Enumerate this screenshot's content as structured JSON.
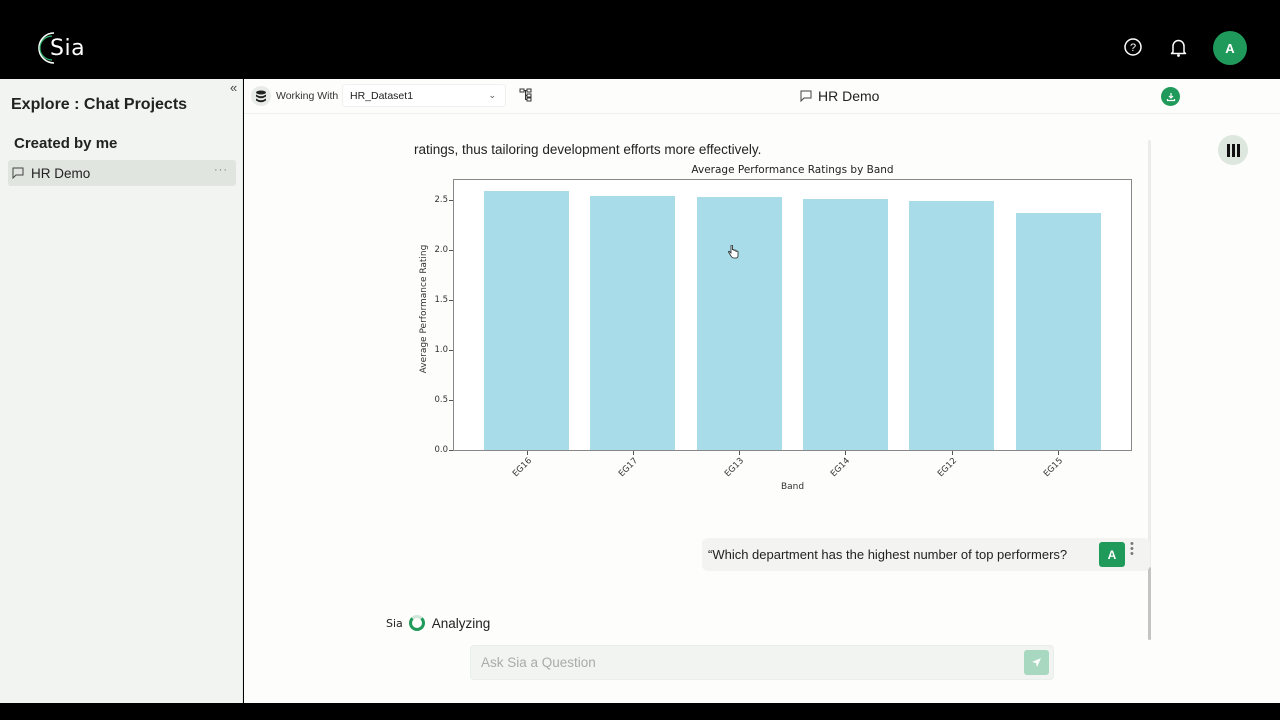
{
  "app": {
    "logo_text": "Sia",
    "avatar_initial": "A"
  },
  "sidebar": {
    "title": "Explore : Chat Projects",
    "section_label": "Created by me",
    "items": [
      {
        "label": "HR Demo",
        "more": "···"
      }
    ],
    "collapse_glyph": "«"
  },
  "toolbar": {
    "working_with_label": "Working With",
    "dataset_value": "HR_Dataset1",
    "chat_title": "HR Demo"
  },
  "conversation": {
    "assistant_text_tail": "ratings, thus tailoring development efforts more effectively.",
    "user_message": "“Which department has the highest number of top performers?",
    "user_badge": "A",
    "status_logo": "Sia",
    "status_text": "Analyzing"
  },
  "input": {
    "placeholder": "Ask Sia a Question",
    "value": ""
  },
  "colors": {
    "accent": "#1f9a5a",
    "bar": "#a7dce8",
    "sidebar_bg": "#f1f4f1"
  },
  "chart_data": {
    "type": "bar",
    "title": "Average Performance Ratings by Band",
    "xlabel": "Band",
    "ylabel": "Average Performance Rating",
    "categories": [
      "EG16",
      "EG17",
      "EG13",
      "EG14",
      "EG12",
      "EG15"
    ],
    "values": [
      2.59,
      2.54,
      2.53,
      2.51,
      2.49,
      2.37
    ],
    "ylim": [
      0,
      2.72
    ],
    "yticks": [
      "0.0",
      "0.5",
      "1.0",
      "1.5",
      "2.0",
      "2.5"
    ],
    "grid": false,
    "legend": null
  }
}
